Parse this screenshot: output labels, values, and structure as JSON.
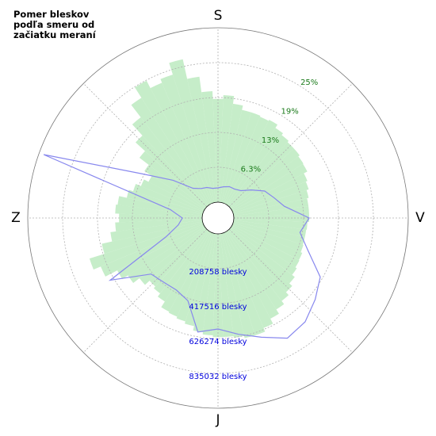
{
  "chart_data": {
    "type": "polar",
    "title": "Pomer bleskov podľa smeru od začiatku meraní",
    "direction_labels": [
      "S",
      "V",
      "J",
      "Z"
    ],
    "ylim": [
      0,
      31.25
    ],
    "yticks": [
      {
        "value": 6.25,
        "label": "6.3%"
      },
      {
        "value": 12.5,
        "label": "13%"
      },
      {
        "value": 18.75,
        "label": "19%"
      },
      {
        "value": 25,
        "label": "25%"
      }
    ],
    "ytick_color": "#1a7a1a",
    "y2lim": [
      0,
      1043790
    ],
    "y2ticks": [
      {
        "value": 208758,
        "label": "208758 blesky"
      },
      {
        "value": 417516,
        "label": "417516 blesky"
      },
      {
        "value": 626274,
        "label": "626274 blesky"
      },
      {
        "value": 835032,
        "label": "835032 blesky"
      }
    ],
    "y2tick_color": "#0000dd",
    "grid": true,
    "series": [
      {
        "type": "bar",
        "color": "#b8e8bc",
        "values": [
          18.5,
          19.2,
          17.8,
          17.0,
          17.0,
          16.8,
          17.0,
          16.3,
          15.9,
          15.6,
          15.6,
          15.3,
          15.2,
          14.5,
          14.2,
          13.8,
          13.5,
          13.5,
          13.5,
          13.2,
          13.1,
          13.1,
          13.2,
          13.5,
          13.6,
          13.9,
          14.5,
          15.2,
          15.9,
          16.6,
          17.5,
          18.5,
          19.2,
          19.2,
          18.8,
          18.5,
          18.5,
          18.2,
          17.8,
          17.0,
          16.6,
          16.3,
          16.1,
          14.9,
          14.2,
          13.8,
          14.9,
          16.3,
          17.5,
          19.9,
          21.3,
          18.5,
          16.6,
          15.6,
          14.9,
          15.6,
          15.3,
          13.9,
          13.1,
          12.1,
          11.2,
          12.8,
          14.9,
          17.2,
          19.9,
          22.7,
          24.9,
          23.4,
          24.1,
          26.3,
          22.7,
          19.9
        ]
      },
      {
        "type": "line",
        "axis": "y2",
        "color": "#8888ee",
        "values": [
          85400,
          94890,
          104380,
          104380,
          118610,
          166060,
          227740,
          260950,
          308390,
          450730,
          403280,
          479190,
          612040,
          664230,
          716420,
          735400,
          664230,
          612040,
          569340,
          597810,
          431750,
          403280,
          408030,
          427000,
          650000,
          237230,
          147080,
          118610,
          194530,
          1015320,
          436490,
          256200,
          137590,
          109120,
          99630,
          85400
        ]
      }
    ]
  }
}
